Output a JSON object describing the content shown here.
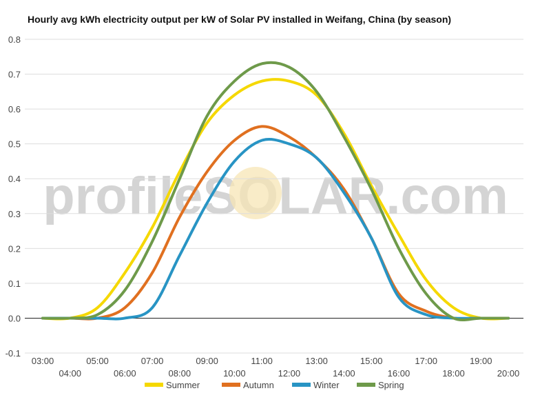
{
  "chart_data": {
    "type": "line",
    "title": "Hourly avg kWh electricity output per kW of Solar PV installed in Weifang, China (by season)",
    "xlabel": "",
    "ylabel": "",
    "ylim": [
      -0.1,
      0.8
    ],
    "yticks": [
      "-0.1",
      "0.0",
      "0.1",
      "0.2",
      "0.3",
      "0.4",
      "0.5",
      "0.6",
      "0.7",
      "0.8"
    ],
    "x": [
      "03:00",
      "04:00",
      "05:00",
      "06:00",
      "07:00",
      "08:00",
      "09:00",
      "10:00",
      "11:00",
      "12:00",
      "13:00",
      "14:00",
      "15:00",
      "16:00",
      "17:00",
      "18:00",
      "19:00",
      "20:00"
    ],
    "grid": true,
    "legend": "bottom",
    "watermark": "profileSOLAR.com",
    "series": [
      {
        "name": "Summer",
        "color": "#f5d800",
        "values": [
          0.0,
          0.0,
          0.03,
          0.13,
          0.26,
          0.42,
          0.56,
          0.64,
          0.68,
          0.68,
          0.64,
          0.53,
          0.38,
          0.24,
          0.11,
          0.03,
          0.0,
          0.0
        ]
      },
      {
        "name": "Autumn",
        "color": "#e07020",
        "values": [
          0.0,
          0.0,
          0.0,
          0.03,
          0.13,
          0.29,
          0.42,
          0.51,
          0.55,
          0.52,
          0.46,
          0.37,
          0.23,
          0.07,
          0.02,
          0.0,
          0.0,
          0.0
        ]
      },
      {
        "name": "Winter",
        "color": "#2894c4",
        "values": [
          0.0,
          0.0,
          0.0,
          0.0,
          0.03,
          0.18,
          0.33,
          0.45,
          0.51,
          0.5,
          0.46,
          0.36,
          0.23,
          0.06,
          0.01,
          0.0,
          0.0,
          0.0
        ]
      },
      {
        "name": "Spring",
        "color": "#6e9a4a",
        "values": [
          0.0,
          0.0,
          0.01,
          0.08,
          0.22,
          0.4,
          0.58,
          0.68,
          0.73,
          0.72,
          0.65,
          0.52,
          0.37,
          0.2,
          0.07,
          0.0,
          0.0,
          0.0
        ]
      }
    ]
  }
}
